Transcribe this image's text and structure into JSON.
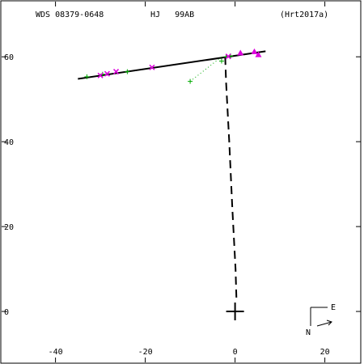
{
  "header": {
    "wds_id": "WDS 08379-0648",
    "discoverer": "HJ   99AB",
    "reference": "(Hrt2017a)"
  },
  "compass": {
    "east": "E",
    "north": "N"
  },
  "colors": {
    "axes": "#000000",
    "orbit": "#000000",
    "residual": "#000000",
    "green_obs": "#00aa00",
    "magenta_obs": "#dd00dd"
  },
  "chart_data": {
    "type": "scatter",
    "xlim": [
      -52,
      28
    ],
    "ylim": [
      -12,
      73
    ],
    "x_ticks": [
      {
        "value": -40,
        "label": "-40"
      },
      {
        "value": -20,
        "label": "-20"
      },
      {
        "value": 0,
        "label": "0"
      },
      {
        "value": 20,
        "label": "20"
      }
    ],
    "y_ticks": [
      {
        "value": 0,
        "label": "0"
      },
      {
        "value": 20,
        "label": "20"
      },
      {
        "value": 40,
        "label": "40"
      },
      {
        "value": 60,
        "label": "60"
      }
    ],
    "primary": {
      "x": 0,
      "y": 0
    },
    "orbit_line": [
      [
        -35,
        54.8
      ],
      [
        6.8,
        61.3
      ]
    ],
    "residual_line": [
      [
        -2.2,
        60.0
      ],
      [
        -2.0,
        54
      ],
      [
        -1.3,
        40
      ],
      [
        -0.6,
        24
      ],
      [
        0.1,
        10
      ],
      [
        0.3,
        3
      ]
    ],
    "dotted_link": [
      [
        -10,
        54.2
      ],
      [
        -3,
        60
      ]
    ],
    "series": [
      {
        "marker": "plus",
        "points": [
          [
            -33,
            55.3
          ],
          [
            -29.5,
            55.9
          ],
          [
            -24,
            56.5
          ],
          [
            -10,
            54.2
          ],
          [
            -3,
            59.0
          ],
          [
            -2,
            60.0
          ],
          [
            -1,
            60.2
          ]
        ]
      },
      {
        "marker": "cross",
        "points": [
          [
            -30,
            55.6
          ],
          [
            -28.5,
            56.0
          ],
          [
            -26.5,
            56.5
          ],
          [
            -18.5,
            57.5
          ],
          [
            -1.5,
            60.1
          ]
        ]
      },
      {
        "marker": "triangle",
        "points": [
          [
            1.2,
            60.9
          ],
          [
            4.3,
            61.2
          ],
          [
            5.2,
            60.5
          ]
        ]
      }
    ]
  }
}
